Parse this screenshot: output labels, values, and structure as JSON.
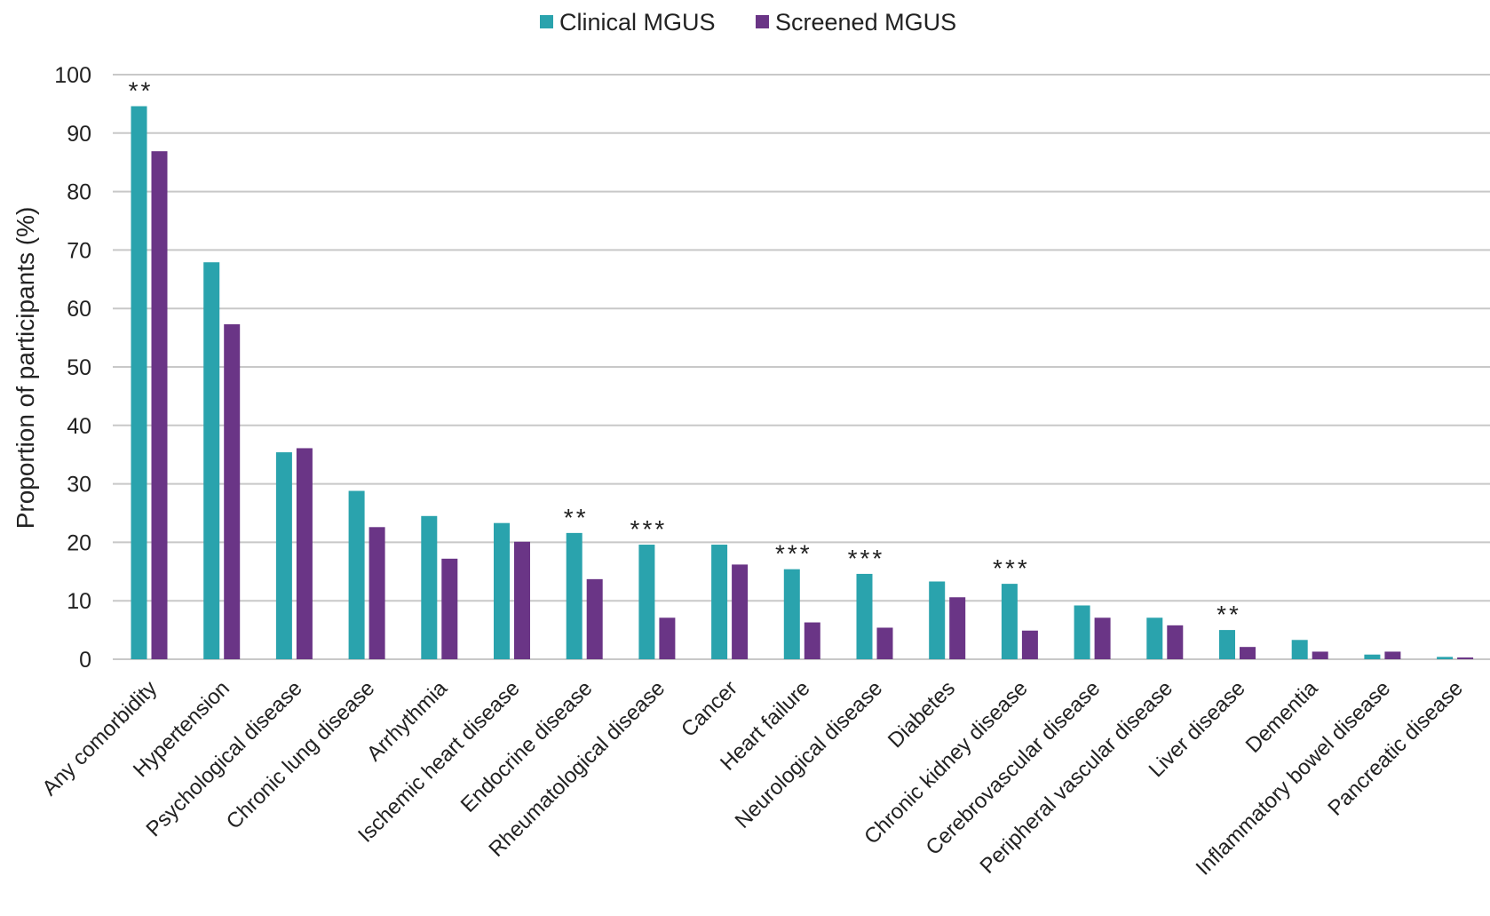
{
  "chart_data": {
    "type": "bar",
    "title": "",
    "xlabel": "",
    "ylabel": "Proportion of participants (%)",
    "ylim": [
      0,
      100
    ],
    "yticks": [
      0,
      10,
      20,
      30,
      40,
      50,
      60,
      70,
      80,
      90,
      100
    ],
    "grid": true,
    "legend_position": "top-center",
    "categories": [
      "Any comorbidity",
      "Hypertension",
      "Psychological disease",
      "Chronic lung disease",
      "Arrhythmia",
      "Ischemic heart disease",
      "Endocrine disease",
      "Rheumatological disease",
      "Cancer",
      "Heart failure",
      "Neurological disease",
      "Diabetes",
      "Chronic kidney disease",
      "Cerebrovascular disease",
      "Peripheral  vascular disease",
      "Liver disease",
      "Dementia",
      "Inflammatory bowel disease",
      "Pancreatic disease"
    ],
    "series": [
      {
        "name": "Clinical MGUS",
        "color": "#2aa3ad",
        "values": [
          94.6,
          67.9,
          35.4,
          28.8,
          24.5,
          23.3,
          21.6,
          19.6,
          19.6,
          15.4,
          14.6,
          13.3,
          12.9,
          9.2,
          7.1,
          5.0,
          3.3,
          0.8,
          0.4
        ]
      },
      {
        "name": "Screened MGUS",
        "color": "#6a3586",
        "values": [
          86.9,
          57.3,
          36.1,
          22.6,
          17.2,
          20.1,
          13.7,
          7.1,
          16.2,
          6.3,
          5.4,
          10.6,
          4.9,
          7.1,
          5.8,
          2.1,
          1.3,
          1.3,
          0.3
        ]
      }
    ],
    "significance": [
      "**",
      "",
      "",
      "",
      "",
      "",
      "**",
      "***",
      "",
      "***",
      "***",
      "",
      "***",
      "",
      "",
      "**",
      "",
      "",
      ""
    ],
    "grid_color": "#c8c8c8"
  }
}
